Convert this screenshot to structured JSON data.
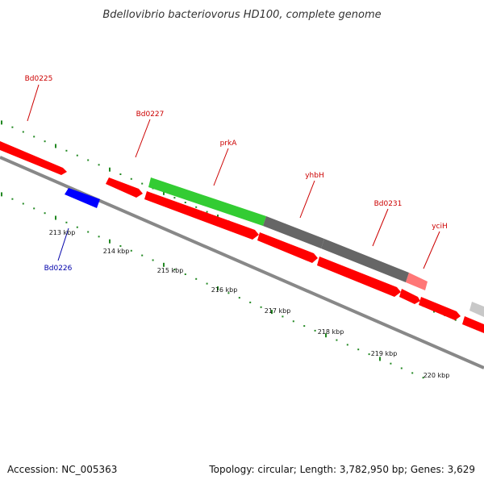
{
  "title": "Bdellovibrio bacteriovorus HD100, complete genome",
  "footer": {
    "accession": "Accession: NC_005363",
    "summary": "Topology: circular; Length: 3,782,950 bp; Genes: 3,629"
  },
  "colors": {
    "forward_cds": "#ff0000",
    "reverse_cds": "#0000ff",
    "green_feature": "#33cc33",
    "dark_feature": "#666666",
    "light_feature": "#ff7777",
    "grey_feature": "#c8c8c8",
    "backbone": "#888888",
    "ticks": "#228822",
    "label_red": "#cc0000",
    "label_blue": "#0000aa"
  },
  "gene_labels": [
    {
      "text": "Bd0225",
      "color": "red"
    },
    {
      "text": "Bd0227",
      "color": "red"
    },
    {
      "text": "prkA",
      "color": "red"
    },
    {
      "text": "yhbH",
      "color": "red"
    },
    {
      "text": "Bd0231",
      "color": "red"
    },
    {
      "text": "yciH",
      "color": "red"
    },
    {
      "text": "Bd0226",
      "color": "blue"
    }
  ],
  "scale_labels": [
    "213 kbp",
    "214 kbp",
    "215 kbp",
    "216 kbp",
    "217 kbp",
    "218 kbp",
    "219 kbp",
    "220 kbp"
  ]
}
